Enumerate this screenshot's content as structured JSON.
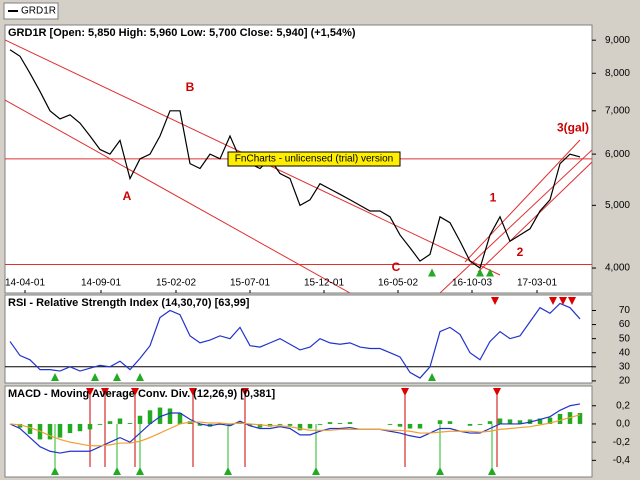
{
  "legend_tab": "GRD1R",
  "chart_data": [
    {
      "type": "line",
      "title": "GRD1R [Open: 5,850  High: 5,960  Low: 5,700  Close: 5,940] (+1,54%)",
      "watermark": "FnCharts - unlicensed (trial) version",
      "log_scale": true,
      "x": [
        0,
        1,
        2,
        3,
        4,
        5,
        6,
        7,
        8,
        9,
        10,
        11,
        12,
        13,
        14,
        15,
        16,
        17,
        18,
        19,
        20,
        21,
        22,
        23,
        24,
        25,
        26,
        27,
        28,
        29,
        30,
        31,
        32,
        33,
        34,
        35,
        36,
        37,
        38,
        39,
        40,
        41,
        42,
        43,
        44,
        45,
        46,
        47,
        48,
        49,
        50,
        51,
        52,
        53,
        54,
        55,
        56,
        57
      ],
      "xlim": [
        -0.5,
        58.2
      ],
      "xticks": [
        {
          "value": 1.5,
          "label": "14-04-01"
        },
        {
          "value": 9.1,
          "label": "14-09-01"
        },
        {
          "value": 16.6,
          "label": "15-02-02"
        },
        {
          "value": 24,
          "label": "15-07-01"
        },
        {
          "value": 31.4,
          "label": "15-12-01"
        },
        {
          "value": 38.8,
          "label": "16-05-02"
        },
        {
          "value": 46.2,
          "label": "16-10-03"
        },
        {
          "value": 52.7,
          "label": "17-03-01"
        }
      ],
      "ylim": [
        3660,
        9500
      ],
      "yticks": [
        {
          "value": 4000,
          "label": "4,000"
        },
        {
          "value": 5000,
          "label": "5,000"
        },
        {
          "value": 6000,
          "label": "6,000"
        },
        {
          "value": 7000,
          "label": "7,000"
        },
        {
          "value": 8000,
          "label": "8,000"
        },
        {
          "value": 9000,
          "label": "9,000"
        }
      ],
      "hlines": [
        5900,
        4050
      ],
      "series": [
        {
          "color": "#000000",
          "values": [
            8700,
            8500,
            8000,
            7500,
            7000,
            6800,
            6900,
            6700,
            6400,
            6100,
            6000,
            6300,
            5500,
            5900,
            6000,
            6400,
            7000,
            7000,
            5800,
            5700,
            6000,
            5900,
            6400,
            5900,
            5800,
            5700,
            5900,
            5600,
            5500,
            5000,
            5100,
            5400,
            5300,
            5200,
            5100,
            5000,
            4900,
            4900,
            4800,
            4500,
            4300,
            4100,
            4200,
            4800,
            4700,
            4400,
            4100,
            4000,
            4500,
            4800,
            4400,
            4500,
            4600,
            4900,
            5100,
            5800,
            6000,
            5940
          ]
        }
      ],
      "annotations": [
        {
          "text": "A",
          "x": 11.7,
          "y": 5150
        },
        {
          "text": "B",
          "x": 18,
          "y": 7590
        },
        {
          "text": "C",
          "x": 38.6,
          "y": 4000
        },
        {
          "text": "1",
          "x": 48.3,
          "y": 5130
        },
        {
          "text": "2",
          "x": 51,
          "y": 4220
        },
        {
          "text": "3(gal)",
          "x": 56.3,
          "y": 6580
        }
      ],
      "buy_signals": [
        42.2,
        47,
        48
      ],
      "sell_signals": []
    },
    {
      "type": "line",
      "title": "RSI - Relative Strength Index (14,30,70) [63,99]",
      "ylim": [
        18.5,
        81
      ],
      "yticks": [
        20,
        30,
        40,
        50,
        60,
        70
      ],
      "hlines": [
        30
      ],
      "series": [
        {
          "color": "#2233cc",
          "values": [
            48,
            38,
            35,
            28,
            28,
            27,
            30,
            27,
            29,
            31,
            30,
            34,
            28,
            36,
            45,
            65,
            70,
            67,
            52,
            47,
            49,
            52,
            50,
            58,
            45,
            44,
            47,
            50,
            46,
            42,
            44,
            50,
            47,
            46,
            47,
            44,
            43,
            43,
            40,
            37,
            26,
            22,
            30,
            55,
            58,
            53,
            40,
            35,
            48,
            55,
            50,
            52,
            62,
            72,
            68,
            75,
            72,
            64
          ]
        }
      ],
      "buy_signals": [
        4.5,
        8.5,
        10.7,
        13,
        42.2
      ],
      "sell_signals": [
        48.5,
        54.3,
        55.3,
        56.2
      ]
    },
    {
      "type": "line",
      "title": "MACD - Moving Average Conv. Div. (12,26,9) [0,381]",
      "ylim": [
        -0.583,
        0.417
      ],
      "yticks": [
        {
          "value": -0.4,
          "label": "-0,4"
        },
        {
          "value": -0.2,
          "label": "-0,2"
        },
        {
          "value": 0,
          "label": "0,0"
        },
        {
          "value": 0.2,
          "label": "0,2"
        }
      ],
      "signal_lines": true,
      "series": [
        {
          "type": "bar",
          "color": "#22aa22",
          "values": [
            0,
            -0.04,
            -0.11,
            -0.17,
            -0.17,
            -0.15,
            -0.1,
            -0.08,
            -0.06,
            -0.01,
            0.03,
            0.06,
            0.01,
            0.09,
            0.15,
            0.18,
            0.17,
            0.12,
            0.03,
            -0.02,
            -0.03,
            -0.01,
            -0.02,
            0.02,
            -0.02,
            -0.04,
            -0.03,
            -0.01,
            -0.02,
            -0.07,
            -0.05,
            -0.01,
            0.02,
            0.01,
            0.02,
            0,
            0,
            0,
            -0.01,
            -0.03,
            -0.05,
            -0.05,
            0,
            0.04,
            0.03,
            0,
            -0.02,
            -0.01,
            0.03,
            0.06,
            0.05,
            0.04,
            0.05,
            0.06,
            0.07,
            0.11,
            0.13,
            0.12
          ]
        },
        {
          "type": "line",
          "color": "#2233cc",
          "values": [
            0,
            -0.05,
            -0.15,
            -0.25,
            -0.3,
            -0.32,
            -0.3,
            -0.3,
            -0.3,
            -0.25,
            -0.2,
            -0.15,
            -0.2,
            -0.1,
            0,
            0.08,
            0.12,
            0.12,
            0.05,
            0,
            -0.02,
            0,
            -0.02,
            0.03,
            -0.02,
            -0.05,
            -0.05,
            -0.03,
            -0.05,
            -0.12,
            -0.12,
            -0.08,
            -0.05,
            -0.05,
            -0.04,
            -0.06,
            -0.06,
            -0.06,
            -0.08,
            -0.1,
            -0.13,
            -0.15,
            -0.1,
            -0.05,
            -0.05,
            -0.08,
            -0.1,
            -0.1,
            -0.05,
            0,
            0,
            0,
            0.02,
            0.05,
            0.08,
            0.15,
            0.2,
            0.22
          ]
        },
        {
          "type": "line",
          "color": "#f0a030",
          "values": [
            0,
            -0.01,
            -0.04,
            -0.08,
            -0.13,
            -0.17,
            -0.2,
            -0.22,
            -0.24,
            -0.24,
            -0.23,
            -0.21,
            -0.21,
            -0.19,
            -0.15,
            -0.1,
            -0.05,
            0,
            0.02,
            0.02,
            0.01,
            0.01,
            0,
            0.01,
            0,
            -0.01,
            -0.02,
            -0.02,
            -0.03,
            -0.05,
            -0.07,
            -0.07,
            -0.07,
            -0.06,
            -0.06,
            -0.06,
            -0.06,
            -0.06,
            -0.07,
            -0.07,
            -0.08,
            -0.1,
            -0.1,
            -0.09,
            -0.08,
            -0.08,
            -0.08,
            -0.09,
            -0.08,
            -0.06,
            -0.05,
            -0.04,
            -0.03,
            -0.01,
            0.01,
            0.04,
            0.07,
            0.1
          ]
        }
      ],
      "buy_signals": [
        4.5,
        10.7,
        13,
        21.8,
        30.6,
        43,
        48.2
      ],
      "sell_signals": [
        8,
        9.5,
        12.5,
        18.3,
        23.5,
        39.5,
        48.7
      ]
    }
  ]
}
